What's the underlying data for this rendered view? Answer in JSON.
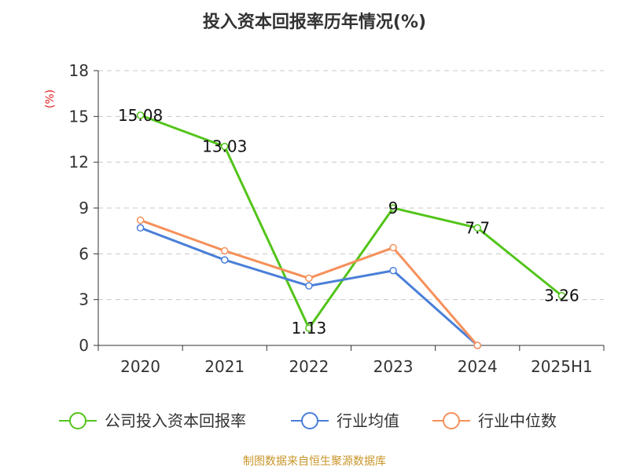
{
  "chart_data": {
    "type": "line",
    "title": "投入资本回报率历年情况(%)",
    "ylabel": "(%)",
    "xlabel": "",
    "categories": [
      "2020",
      "2021",
      "2022",
      "2023",
      "2024",
      "2025H1"
    ],
    "ylim": [
      0,
      18
    ],
    "yticks": [
      0,
      3,
      6,
      9,
      12,
      15,
      18
    ],
    "grid": true,
    "legend_position": "bottom",
    "series": [
      {
        "name": "公司投入资本回报率",
        "color": "#52c41a",
        "values": [
          15.08,
          13.03,
          1.13,
          9,
          7.7,
          3.26
        ],
        "labels": [
          "15.08",
          "13.03",
          "1.13",
          "9",
          "7.7",
          "3.26"
        ]
      },
      {
        "name": "行业均值",
        "color": "#4a7fd8",
        "values": [
          7.7,
          5.6,
          3.9,
          4.9,
          0,
          null
        ]
      },
      {
        "name": "行业中位数",
        "color": "#f5905a",
        "values": [
          8.2,
          6.2,
          4.4,
          6.4,
          0,
          null
        ]
      }
    ]
  },
  "source": "制图数据来自恒生聚源数据库"
}
